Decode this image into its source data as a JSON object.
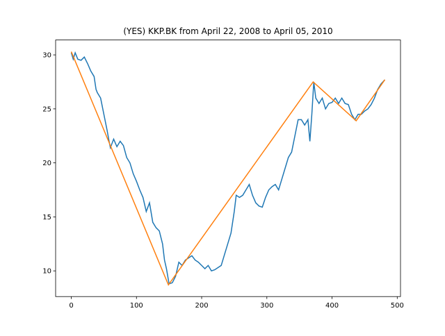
{
  "chart_data": {
    "type": "line",
    "title": "(YES) KKP.BK from April 22, 2008 to April 05, 2010",
    "series": [
      {
        "color": "#1f77b4",
        "x": [
          0,
          3,
          6,
          10,
          15,
          20,
          25,
          30,
          35,
          38,
          40,
          45,
          50,
          55,
          58,
          60,
          65,
          70,
          75,
          80,
          85,
          90,
          95,
          100,
          105,
          110,
          115,
          120,
          125,
          130,
          135,
          140,
          143,
          146,
          150,
          155,
          160,
          165,
          170,
          175,
          180,
          185,
          190,
          195,
          200,
          205,
          210,
          215,
          220,
          225,
          230,
          235,
          240,
          245,
          250,
          253,
          258,
          263,
          268,
          273,
          278,
          283,
          288,
          293,
          298,
          303,
          308,
          313,
          318,
          323,
          328,
          333,
          338,
          343,
          348,
          353,
          358,
          363,
          366,
          369,
          372,
          375,
          380,
          385,
          390,
          395,
          400,
          405,
          410,
          415,
          420,
          425,
          430,
          435,
          440,
          445,
          450,
          455,
          460,
          465,
          470,
          475,
          481
        ],
        "values": [
          30.2,
          29.6,
          30.2,
          29.6,
          29.5,
          29.8,
          29.2,
          28.5,
          28.0,
          26.8,
          26.5,
          26.0,
          24.5,
          23.0,
          22.0,
          21.4,
          22.2,
          21.5,
          22.0,
          21.6,
          20.5,
          20.0,
          19.0,
          18.3,
          17.5,
          16.8,
          15.5,
          16.3,
          14.5,
          14.0,
          13.7,
          12.5,
          11.0,
          10.2,
          8.8,
          8.9,
          9.5,
          10.8,
          10.5,
          11.0,
          11.2,
          11.4,
          11.0,
          10.8,
          10.5,
          10.2,
          10.5,
          10.0,
          10.1,
          10.3,
          10.5,
          11.5,
          12.5,
          13.5,
          15.5,
          17.0,
          16.8,
          17.0,
          17.5,
          18.0,
          17.0,
          16.3,
          16.0,
          15.9,
          16.8,
          17.5,
          17.8,
          18.0,
          17.5,
          18.5,
          19.5,
          20.5,
          21.0,
          22.5,
          24.0,
          24.0,
          23.5,
          24.0,
          22.0,
          24.5,
          27.5,
          26.0,
          25.5,
          26.0,
          25.0,
          25.5,
          25.6,
          26.0,
          25.5,
          26.0,
          25.5,
          25.4,
          24.5,
          24.0,
          24.5,
          24.5,
          24.8,
          25.0,
          25.4,
          26.0,
          26.8,
          27.3,
          27.7
        ]
      },
      {
        "color": "#ff7f0e",
        "x": [
          0,
          149,
          371,
          437,
          481
        ],
        "values": [
          30.3,
          8.7,
          27.5,
          23.9,
          27.7
        ]
      }
    ],
    "xlim": [
      -24,
      505
    ],
    "xticks": [
      0,
      100,
      200,
      300,
      400,
      500
    ],
    "ylim": [
      7.62,
      31.38
    ],
    "yticks": [
      10,
      15,
      20,
      25,
      30
    ]
  }
}
